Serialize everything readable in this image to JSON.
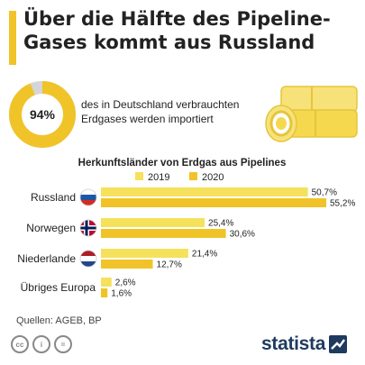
{
  "header": {
    "title_line1": "Über die Hälfte des Pipeline-",
    "title_line2": "Gases kommt aus Russland"
  },
  "kpi": {
    "value_label": "94%",
    "fraction": 0.94,
    "text_line1": "des in Deutschland verbrauchten",
    "text_line2": "Erdgases werden importiert"
  },
  "colors": {
    "accent": "#f0c428",
    "series_2019": "#f5e15c",
    "series_2020": "#f0c428",
    "ring_rest": "#d6d6d6",
    "brand": "#1f3a5f"
  },
  "chart_data": {
    "type": "bar",
    "orientation": "horizontal",
    "title": "Herkunftsländer von Erdgas aus Pipelines",
    "categories": [
      "Russland",
      "Norwegen",
      "Niederlande",
      "Übriges Europa"
    ],
    "flags": [
      "russia-flag-icon",
      "norway-flag-icon",
      "netherlands-flag-icon",
      ""
    ],
    "series": [
      {
        "name": "2019",
        "values": [
          50.7,
          25.4,
          21.4,
          2.6
        ],
        "labels": [
          "50,7%",
          "25,4%",
          "21,4%",
          "2,6%"
        ]
      },
      {
        "name": "2020",
        "values": [
          55.2,
          30.6,
          12.7,
          1.6
        ],
        "labels": [
          "55,2%",
          "30,6%",
          "12,7%",
          "1,6%"
        ]
      }
    ],
    "xlim": [
      0,
      55.2
    ],
    "grid": false,
    "legend_position": "top"
  },
  "footer": {
    "sources": "Quellen: AGEB, BP",
    "license_icons": [
      "cc-icon",
      "attribution-icon",
      "no-derivatives-icon"
    ],
    "license_labels": [
      "cc",
      "i",
      "="
    ],
    "brand": "statista"
  }
}
